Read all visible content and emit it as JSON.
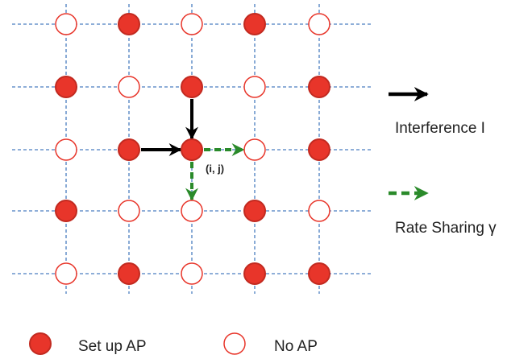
{
  "colors": {
    "setup_fill": "#e8352a",
    "setup_stroke": "#c22a20",
    "noap_fill": "#ffffff",
    "noap_stroke": "#e8352a",
    "grid_line": "#4a7ec0",
    "interference_arrow": "#000000",
    "rate_sharing_arrow": "#2a8a2a"
  },
  "grid": {
    "rows": 5,
    "cols": 5,
    "states": [
      [
        "none",
        "setup",
        "none",
        "setup",
        "none"
      ],
      [
        "setup",
        "none",
        "setup",
        "none",
        "setup"
      ],
      [
        "none",
        "setup",
        "setup",
        "none",
        "setup"
      ],
      [
        "setup",
        "none",
        "none",
        "setup",
        "none"
      ],
      [
        "none",
        "setup",
        "none",
        "setup",
        "setup"
      ]
    ]
  },
  "node_label": "(i, j)",
  "legend": {
    "interference_label": "Interference I",
    "rate_sharing_label": "Rate Sharing γ",
    "setup_label": "Set up AP",
    "noap_label": "No AP"
  }
}
